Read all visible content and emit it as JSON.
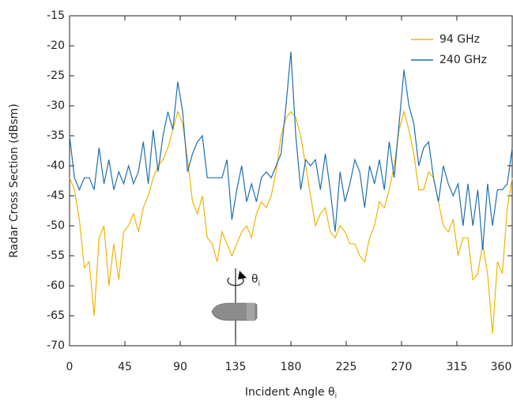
{
  "chart_data": {
    "type": "line",
    "xlabel": "Incident Angle θ",
    "xlabel_subscript": "i",
    "ylabel": "Radar Cross Section (dBsm)",
    "annotation": {
      "symbol": "θ",
      "subscript": "i"
    },
    "x": [
      0,
      4,
      8,
      12,
      16,
      20,
      24,
      28,
      32,
      36,
      40,
      44,
      48,
      52,
      56,
      60,
      64,
      68,
      72,
      76,
      80,
      84,
      88,
      92,
      96,
      100,
      104,
      108,
      112,
      116,
      120,
      124,
      128,
      132,
      136,
      140,
      144,
      148,
      152,
      156,
      160,
      164,
      168,
      172,
      176,
      180,
      184,
      188,
      192,
      196,
      200,
      204,
      208,
      212,
      216,
      220,
      224,
      228,
      232,
      236,
      240,
      244,
      248,
      252,
      256,
      260,
      264,
      268,
      272,
      276,
      280,
      284,
      288,
      292,
      296,
      300,
      304,
      308,
      312,
      316,
      320,
      324,
      328,
      332,
      336,
      340,
      344,
      348,
      352,
      356,
      360
    ],
    "series": [
      {
        "name": "94 GHz",
        "color": "#f0b400",
        "values": [
          -42,
          -44,
          -49,
          -57,
          -56,
          -65,
          -52,
          -50,
          -60,
          -53,
          -59,
          -51,
          -50,
          -48,
          -51,
          -47,
          -45,
          -42,
          -40,
          -39,
          -37,
          -34,
          -31,
          -33,
          -39,
          -46,
          -48,
          -45,
          -52,
          -53,
          -56,
          -51,
          -53,
          -55,
          -53,
          -51,
          -50,
          -52,
          -48,
          -46,
          -47,
          -45,
          -41,
          -35,
          -32,
          -31,
          -32,
          -35,
          -40,
          -45,
          -50,
          -48,
          -47,
          -51,
          -52,
          -50,
          -51,
          -53,
          -53,
          -55,
          -56,
          -52,
          -50,
          -46,
          -47,
          -44,
          -40,
          -34,
          -31,
          -34,
          -38,
          -44,
          -44,
          -41,
          -42,
          -46,
          -50,
          -51,
          -49,
          -55,
          -52,
          -52,
          -59,
          -58,
          -53,
          -58,
          -68,
          -56,
          -58,
          -47,
          -42
        ]
      },
      {
        "name": "240 GHz",
        "color": "#1f6fb0",
        "values": [
          -35,
          -42,
          -44,
          -42,
          -42,
          -44,
          -37,
          -43,
          -39,
          -44,
          -41,
          -43,
          -40,
          -43,
          -41,
          -36,
          -43,
          -34,
          -41,
          -35,
          -31,
          -34,
          -26,
          -31,
          -41,
          -38,
          -36,
          -35,
          -42,
          -42,
          -42,
          -42,
          -39,
          -49,
          -44,
          -40,
          -46,
          -43,
          -46,
          -42,
          -41,
          -42,
          -40,
          -38,
          -30,
          -21,
          -35,
          -44,
          -39,
          -40,
          -39,
          -44,
          -38,
          -44,
          -51,
          -41,
          -46,
          -43,
          -39,
          -41,
          -47,
          -40,
          -43,
          -39,
          -44,
          -36,
          -42,
          -33,
          -24,
          -30,
          -33,
          -40,
          -37,
          -36,
          -42,
          -46,
          -40,
          -43,
          -45,
          -43,
          -50,
          -43,
          -50,
          -44,
          -54,
          -43,
          -50,
          -44,
          -44,
          -43,
          -37
        ]
      }
    ],
    "xlim": [
      0,
      360
    ],
    "ylim": [
      -70,
      -15
    ],
    "xticks": [
      0,
      45,
      90,
      135,
      180,
      225,
      270,
      315,
      360
    ],
    "yticks": [
      -70,
      -65,
      -60,
      -55,
      -50,
      -45,
      -40,
      -35,
      -30,
      -25,
      -20,
      -15
    ],
    "legend": "upper-right"
  }
}
